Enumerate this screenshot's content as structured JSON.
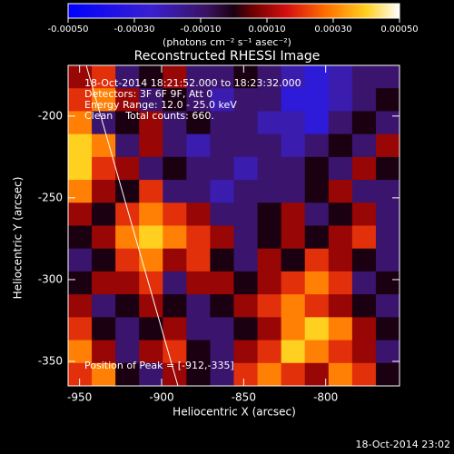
{
  "chart_data": {
    "type": "heatmap",
    "title": "Reconstructed RHESSI Image",
    "x_label": "Heliocentric X (arcsec)",
    "y_label": "Heliocentric Y (arcsec)",
    "colorbar_label": "(photons cm⁻² s⁻¹ asec⁻²)",
    "annotations": [
      "18-Oct-2014 18:21:52.000 to 18:23:32.000",
      "Detectors: 3F 6F 9F, Att 0",
      "Energy Range: 12.0 - 25.0 keV",
      "Clean    Total counts: 660."
    ],
    "peak_label": "Position of Peak = [-912,-335]",
    "footer": "18-Oct-2014 23:02",
    "xlim": [
      -957,
      -755
    ],
    "ylim": [
      -365,
      -169
    ],
    "xticks": [
      -950,
      -900,
      -850,
      -800
    ],
    "yticks": [
      -200,
      -250,
      -300,
      -350
    ],
    "zlim": [
      -0.0005,
      0.0005
    ],
    "zticks": [
      {
        "value": -0.0005,
        "label": "-0.00050"
      },
      {
        "value": -0.0003,
        "label": "-0.00030"
      },
      {
        "value": -0.0001,
        "label": "-0.00010"
      },
      {
        "value": 0.0001,
        "label": "0.00010"
      },
      {
        "value": 0.0003,
        "label": "0.00030"
      },
      {
        "value": 0.0005,
        "label": "0.00050"
      }
    ],
    "colorscale": [
      [
        0,
        "#0000ff"
      ],
      [
        0.25,
        "#3a20d0"
      ],
      [
        0.42,
        "#3a1260"
      ],
      [
        0.5,
        "#1a0010"
      ],
      [
        0.56,
        "#700000"
      ],
      [
        0.66,
        "#d41010"
      ],
      [
        0.78,
        "#ff7000"
      ],
      [
        0.9,
        "#ffd020"
      ],
      [
        1,
        "#ffffff"
      ]
    ],
    "z": [
      [
        0.0001,
        0.0002,
        -0.0001,
        0,
        0.0001,
        -0.0001,
        -0.0001,
        0,
        -0.0001,
        -0.0002,
        -0.0003,
        -0.0002,
        -0.0001,
        -0.0001
      ],
      [
        0.0002,
        0.0003,
        0.0001,
        -0.0001,
        0,
        -0.0001,
        -0.0002,
        -0.0001,
        -0.0001,
        -0.0003,
        -0.0003,
        -0.0002,
        -0.0001,
        0
      ],
      [
        0.0003,
        -0.0001,
        0,
        0.0001,
        -0.0001,
        0,
        -0.0001,
        -0.0001,
        -0.0002,
        -0.0002,
        -0.0003,
        -0.0001,
        0,
        -0.0001
      ],
      [
        0.0004,
        0.0003,
        -0.0001,
        0.0001,
        -0.0001,
        -0.0002,
        -0.0001,
        -0.0001,
        -0.0001,
        -0.0002,
        -0.0001,
        0,
        -0.0001,
        0.0001
      ],
      [
        0.0004,
        0.0002,
        0.0001,
        -0.0001,
        0,
        -0.0001,
        -0.0001,
        -0.0002,
        -0.0001,
        -0.0001,
        0,
        -0.0001,
        0.0001,
        0
      ],
      [
        0.0003,
        0.0001,
        0,
        0.0002,
        -0.0001,
        -0.0001,
        -0.0002,
        -0.0001,
        -0.0001,
        -0.0001,
        0,
        0.0001,
        -0.0001,
        -0.0001
      ],
      [
        0.0001,
        0,
        0.0002,
        0.0003,
        0.0002,
        0.0001,
        -0.0001,
        -0.0001,
        0,
        0.0001,
        -0.0001,
        0,
        0.0001,
        -0.0001
      ],
      [
        0,
        0.0001,
        0.0003,
        0.0004,
        0.0003,
        0.0002,
        0.0001,
        -0.0001,
        0,
        0.0001,
        0,
        0.0001,
        0.0002,
        -0.0001
      ],
      [
        -0.0001,
        0,
        0.0002,
        0.0003,
        0.0001,
        0.0002,
        0,
        -0.0001,
        0.0001,
        0,
        0.0002,
        0.0001,
        0,
        -0.0001
      ],
      [
        0,
        0.0001,
        0.0001,
        0.0002,
        -0.0001,
        0.0001,
        0.0001,
        0,
        0.0001,
        0.0002,
        0.0003,
        0.0002,
        -0.0001,
        0
      ],
      [
        0.0001,
        -0.0001,
        0,
        0.0001,
        0,
        -0.0001,
        0,
        0.0001,
        0.0002,
        0.0003,
        0.0002,
        0.0001,
        0,
        -0.0001
      ],
      [
        0.0002,
        0,
        -0.0001,
        0,
        0.0001,
        -0.0001,
        -0.0001,
        0,
        0.0001,
        0.0003,
        0.0004,
        0.0003,
        0.0001,
        0
      ],
      [
        0.0003,
        0.0001,
        -0.0001,
        0.0001,
        0.0002,
        0,
        -0.0001,
        0.0001,
        0.0002,
        0.0004,
        0.0003,
        0.0002,
        0.0001,
        -0.0001
      ],
      [
        0.0002,
        0.0003,
        0,
        -0.0001,
        0.0001,
        0,
        -0.0001,
        0.0002,
        0.0003,
        0.0002,
        0.0001,
        0.0003,
        0.0002,
        0
      ]
    ]
  }
}
